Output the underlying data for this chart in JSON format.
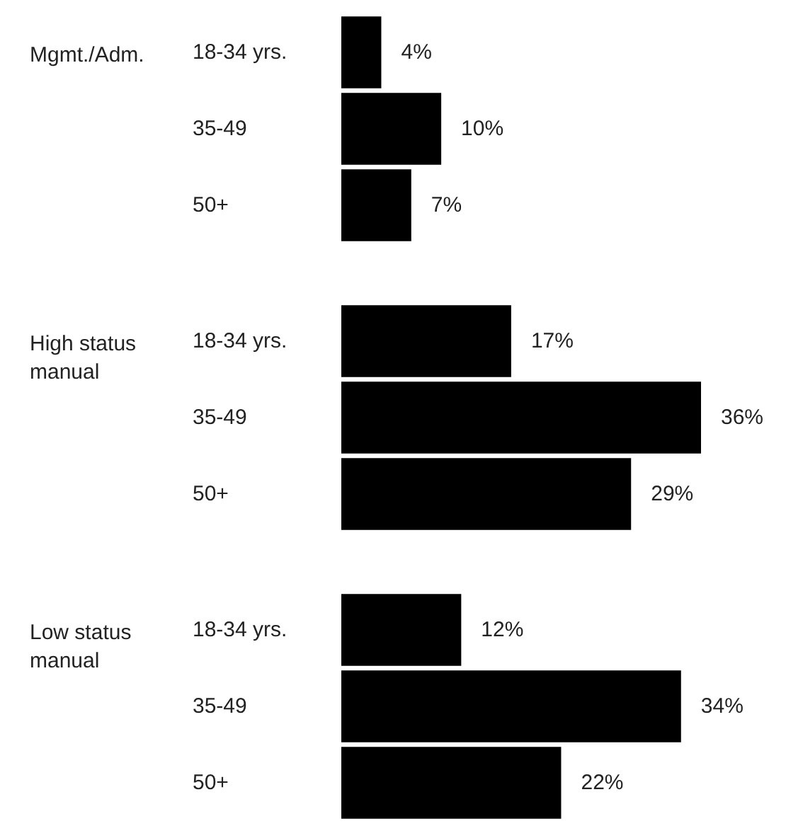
{
  "chart_data": [
    {
      "type": "bar",
      "orientation": "horizontal",
      "title": "Mgmt./Adm.",
      "categories": [
        "18-34 yrs.",
        "35-49",
        "50+"
      ],
      "values": [
        4,
        10,
        7
      ],
      "value_labels": [
        "4%",
        "10%",
        "7%"
      ],
      "color": "#000000",
      "tick_labels": "y"
    },
    {
      "type": "bar",
      "orientation": "horizontal",
      "title": "High status manual",
      "categories": [
        "18-34 yrs.",
        "35-49",
        "50+"
      ],
      "values": [
        17,
        36,
        29
      ],
      "value_labels": [
        "17%",
        "36%",
        "29%"
      ],
      "color": "#000000",
      "tick_labels": "y"
    },
    {
      "type": "bar",
      "orientation": "horizontal",
      "title": "Low status manual",
      "categories": [
        "18-34 yrs.",
        "35-49",
        "50+"
      ],
      "values": [
        12,
        34,
        22
      ],
      "value_labels": [
        "12%",
        "34%",
        "22%"
      ],
      "color": "#000000",
      "tick_labels": "y"
    }
  ]
}
